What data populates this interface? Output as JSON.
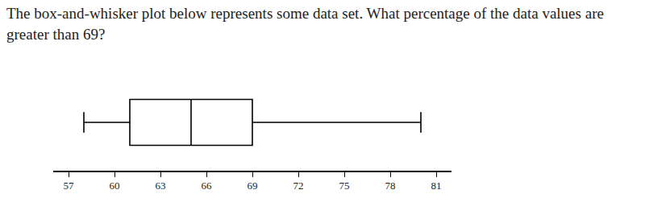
{
  "chart_data": {
    "type": "box",
    "orientation": "horizontal",
    "title": "The box-and-whisker plot below represents some data set. What percentage of the data values are greater than 69?",
    "min": 58,
    "q1": 61,
    "median": 65,
    "q3": 69,
    "max": 80,
    "color": "#000000",
    "xlim": [
      56,
      82
    ],
    "xticks": [
      57,
      60,
      63,
      66,
      69,
      72,
      75,
      78,
      81
    ],
    "grid": false
  }
}
